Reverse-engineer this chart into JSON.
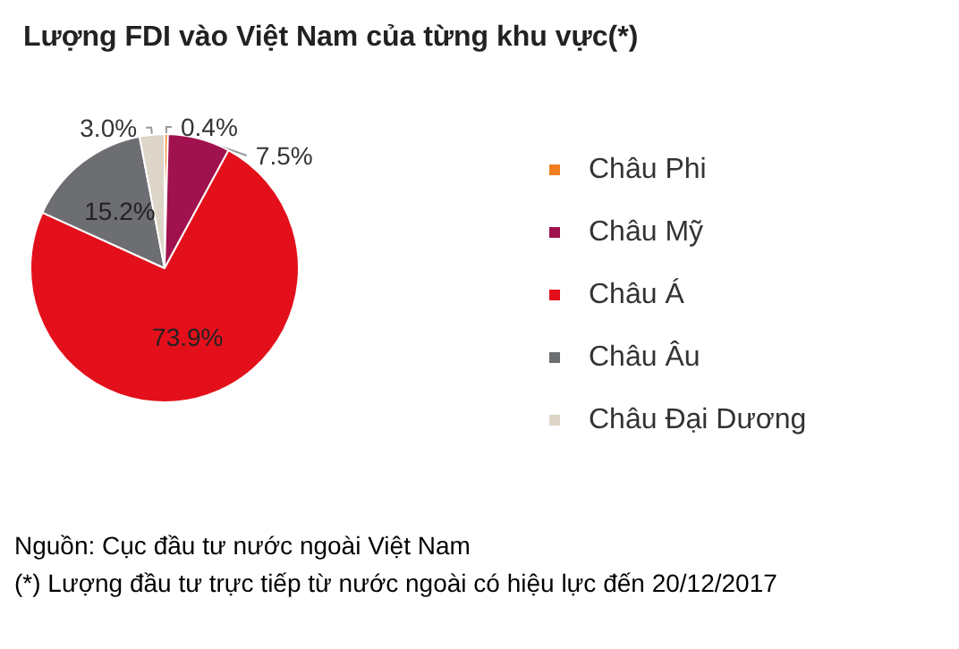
{
  "chart_data": {
    "type": "pie",
    "title": "Lượng FDI vào Việt Nam của từng khu vực(*)",
    "categories": [
      "Châu Phi",
      "Châu Mỹ",
      "Châu Á",
      "Châu Âu",
      "Châu Đại Dương"
    ],
    "values": [
      0.4,
      7.5,
      73.9,
      15.2,
      3.0
    ],
    "colors": [
      "#f07d1e",
      "#a0124e",
      "#e3101b",
      "#6d6e71",
      "#ddd5c7"
    ],
    "value_labels": [
      "0.4%",
      "7.5%",
      "73.9%",
      "15.2%",
      "3.0%"
    ],
    "legend": "right",
    "annotations": [
      "Nguồn: Cục đầu tư nước ngoài Việt Nam",
      "(*) Lượng đầu tư trực tiếp từ nước ngoài có hiệu lực đến 20/12/2017"
    ]
  }
}
